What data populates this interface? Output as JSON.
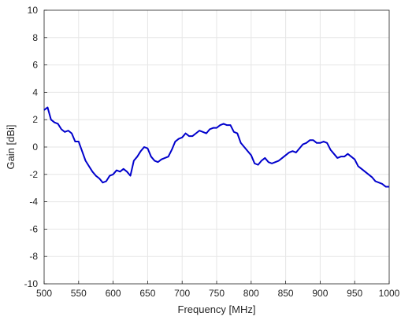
{
  "chart_data": {
    "type": "line",
    "title": "",
    "xlabel": "Frequency [MHz]",
    "ylabel": "Gain [dBi]",
    "xlim": [
      500,
      1000
    ],
    "ylim": [
      -10,
      10
    ],
    "x_ticks": [
      500,
      550,
      600,
      650,
      700,
      750,
      800,
      850,
      900,
      950,
      1000
    ],
    "y_ticks": [
      -10,
      -8,
      -6,
      -4,
      -2,
      0,
      2,
      4,
      6,
      8,
      10
    ],
    "grid": true,
    "colors": {
      "series": "#0000cc",
      "grid": "#e6e6e6",
      "axis": "#262626"
    },
    "series": [
      {
        "x": [
          500,
          505,
          510,
          515,
          520,
          525,
          530,
          535,
          540,
          545,
          550,
          555,
          560,
          565,
          570,
          575,
          580,
          585,
          590,
          595,
          600,
          605,
          610,
          615,
          620,
          625,
          630,
          635,
          640,
          645,
          650,
          655,
          660,
          665,
          670,
          675,
          680,
          685,
          690,
          695,
          700,
          705,
          710,
          715,
          720,
          725,
          730,
          735,
          740,
          745,
          750,
          755,
          760,
          765,
          770,
          775,
          780,
          785,
          790,
          795,
          800,
          805,
          810,
          815,
          820,
          825,
          830,
          835,
          840,
          845,
          850,
          855,
          860,
          865,
          870,
          875,
          880,
          885,
          890,
          895,
          900,
          905,
          910,
          915,
          920,
          925,
          930,
          935,
          940,
          945,
          950,
          955,
          960,
          965,
          970,
          975,
          980,
          985,
          990,
          995,
          1000
        ],
        "y": [
          2.7,
          2.9,
          2.0,
          1.8,
          1.7,
          1.3,
          1.1,
          1.2,
          1.0,
          0.4,
          0.4,
          -0.3,
          -1.0,
          -1.4,
          -1.8,
          -2.1,
          -2.3,
          -2.6,
          -2.5,
          -2.1,
          -2.0,
          -1.7,
          -1.8,
          -1.6,
          -1.8,
          -2.1,
          -1.0,
          -0.7,
          -0.3,
          0.0,
          -0.1,
          -0.7,
          -1.0,
          -1.1,
          -0.9,
          -0.8,
          -0.7,
          -0.2,
          0.4,
          0.6,
          0.7,
          1.0,
          0.8,
          0.8,
          1.0,
          1.2,
          1.1,
          1.0,
          1.3,
          1.4,
          1.4,
          1.6,
          1.7,
          1.6,
          1.6,
          1.1,
          1.0,
          0.3,
          0.0,
          -0.3,
          -0.6,
          -1.2,
          -1.3,
          -1.0,
          -0.8,
          -1.1,
          -1.2,
          -1.1,
          -1.0,
          -0.8,
          -0.6,
          -0.4,
          -0.3,
          -0.4,
          -0.1,
          0.2,
          0.3,
          0.5,
          0.5,
          0.3,
          0.3,
          0.4,
          0.3,
          -0.2,
          -0.5,
          -0.8,
          -0.7,
          -0.7,
          -0.5,
          -0.7,
          -0.9,
          -1.4,
          -1.6,
          -1.8,
          -2.0,
          -2.2,
          -2.5,
          -2.6,
          -2.7,
          -2.9,
          -2.9
        ]
      }
    ]
  }
}
